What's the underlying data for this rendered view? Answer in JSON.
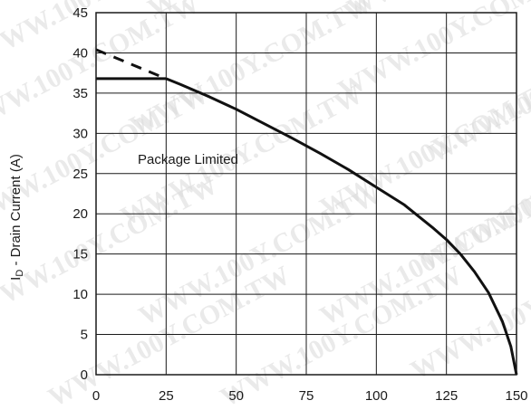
{
  "chart_data": {
    "type": "line",
    "title": "",
    "xlabel": "",
    "ylabel": "I",
    "ylabel_sub": "D",
    "ylabel_rest": " - Drain Current (A)",
    "xlim": [
      0,
      150
    ],
    "ylim": [
      0,
      45
    ],
    "xticks": [
      0,
      25,
      50,
      75,
      100,
      125,
      150
    ],
    "yticks": [
      0,
      5,
      10,
      15,
      20,
      25,
      30,
      35,
      40,
      45
    ],
    "grid": true,
    "annotation": "Package Limited",
    "watermark": "WWW.100Y.COM.TW",
    "series": [
      {
        "style": "solid",
        "x": [
          0,
          25
        ],
        "y": [
          36.8,
          36.8
        ]
      },
      {
        "style": "dashed",
        "x": [
          0,
          25
        ],
        "y": [
          40.4,
          36.8
        ]
      },
      {
        "style": "solid",
        "x": [
          25,
          30,
          40,
          50,
          60,
          70,
          80,
          90,
          100,
          110,
          120,
          125,
          130,
          135,
          140,
          145,
          148,
          150
        ],
        "y": [
          36.8,
          36.1,
          34.6,
          33.0,
          31.2,
          29.4,
          27.5,
          25.5,
          23.3,
          21.1,
          18.3,
          16.8,
          15.0,
          12.8,
          10.2,
          6.6,
          3.5,
          0
        ]
      }
    ]
  }
}
